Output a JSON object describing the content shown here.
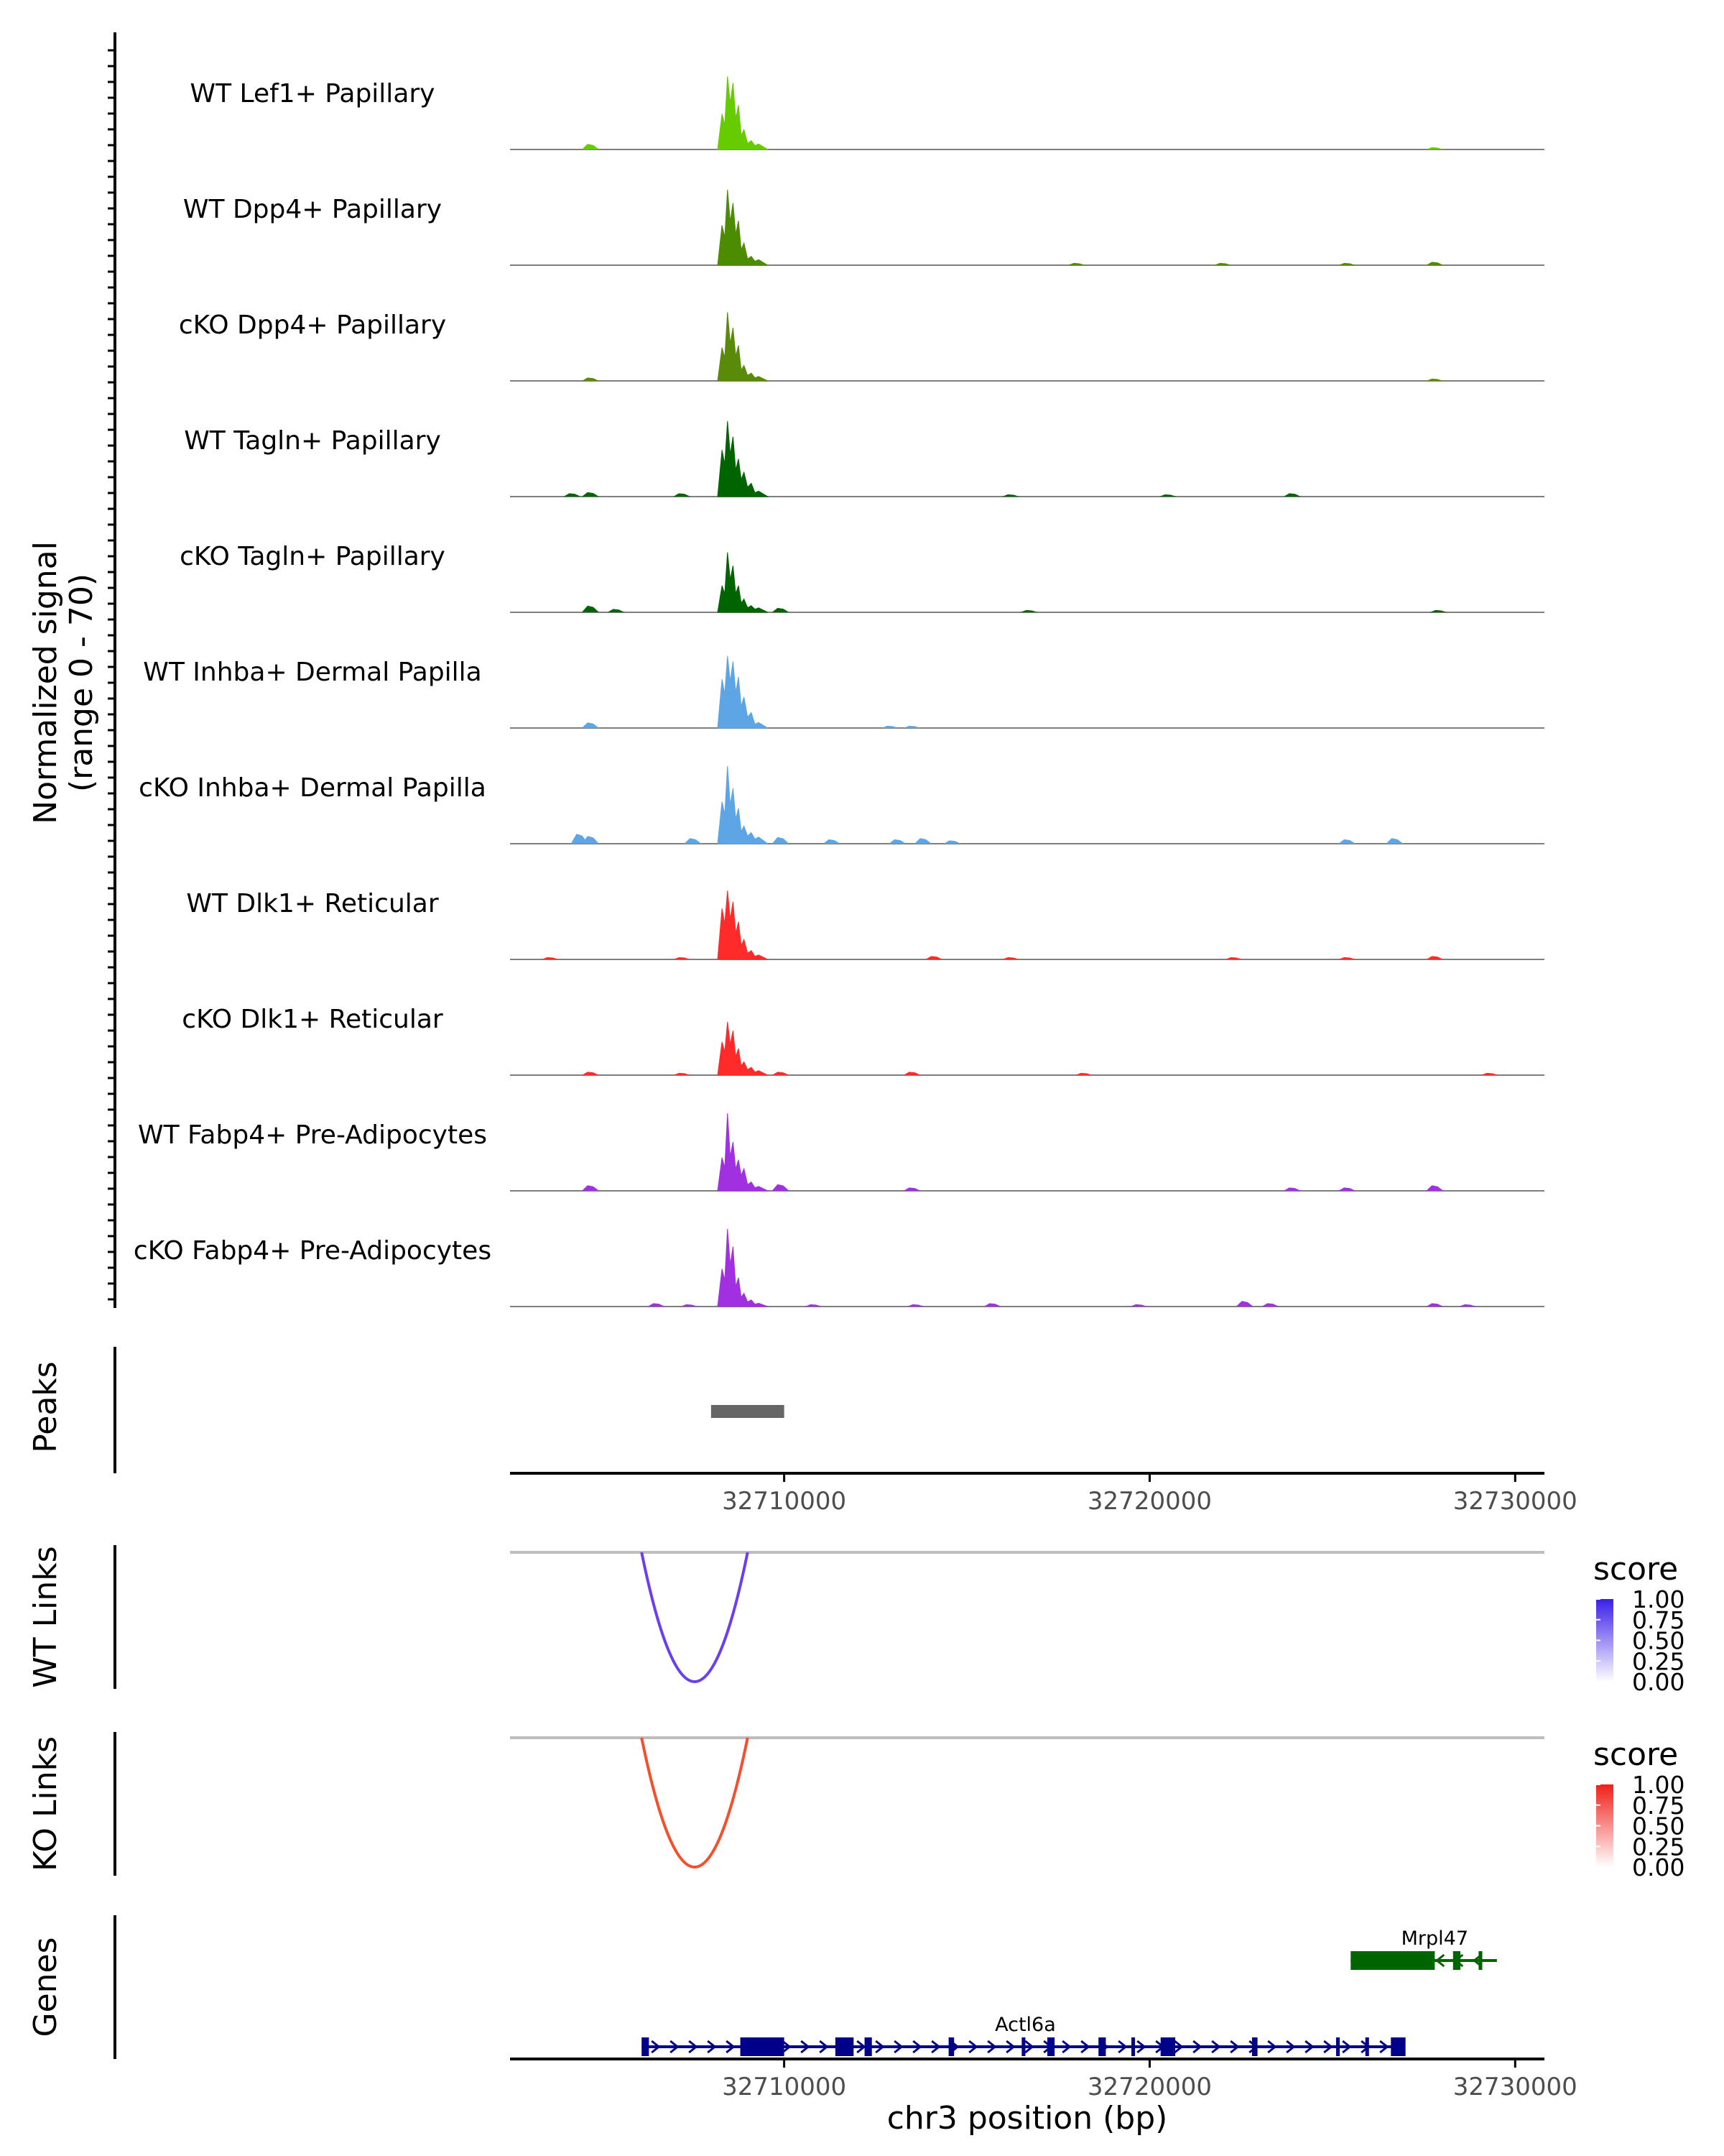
{
  "chart_data": {
    "type": "area",
    "title": "",
    "y_axis_label_line1": "Normalized signal",
    "y_axis_label_line2": "(range 0 - 70)",
    "ylim": [
      0,
      70
    ],
    "xlim": [
      32702500,
      32730800
    ],
    "xlabel": "chr3 position (bp)",
    "x_ticks": [
      32710000,
      32720000,
      32730000
    ],
    "x_tick_labels": [
      "32710000",
      "32720000",
      "32730000"
    ],
    "tracks": [
      {
        "name": "WT Lef1+ Papillary",
        "color": "#66CC00",
        "background": [
          [
            32704700,
            5
          ],
          [
            32727800,
            2
          ]
        ],
        "peak": [
          [
            32708300,
            32
          ],
          [
            32708450,
            66
          ],
          [
            32708600,
            60
          ],
          [
            32708750,
            40
          ],
          [
            32708900,
            18
          ],
          [
            32709100,
            8
          ],
          [
            32709300,
            5
          ]
        ]
      },
      {
        "name": "WT Dpp4+ Papillary",
        "color": "#4C8C00",
        "background": [
          [
            32718000,
            2
          ],
          [
            32722000,
            2
          ],
          [
            32725400,
            2
          ],
          [
            32727800,
            3
          ]
        ],
        "peak": [
          [
            32708300,
            36
          ],
          [
            32708450,
            68
          ],
          [
            32708600,
            56
          ],
          [
            32708750,
            40
          ],
          [
            32708900,
            20
          ],
          [
            32709100,
            8
          ],
          [
            32709300,
            5
          ]
        ]
      },
      {
        "name": "cKO Dpp4+ Papillary",
        "color": "#5A8A0A",
        "background": [
          [
            32704700,
            3
          ],
          [
            32727800,
            2
          ]
        ],
        "peak": [
          [
            32708300,
            30
          ],
          [
            32708450,
            62
          ],
          [
            32708600,
            48
          ],
          [
            32708750,
            32
          ],
          [
            32708900,
            14
          ],
          [
            32709100,
            7
          ],
          [
            32709300,
            4
          ]
        ]
      },
      {
        "name": "WT Tagln+ Papillary",
        "color": "#006400",
        "background": [
          [
            32704200,
            3
          ],
          [
            32704700,
            4
          ],
          [
            32707200,
            3
          ],
          [
            32716200,
            2
          ],
          [
            32720500,
            2
          ],
          [
            32723900,
            3
          ]
        ],
        "peak": [
          [
            32708300,
            42
          ],
          [
            32708450,
            68
          ],
          [
            32708600,
            54
          ],
          [
            32708750,
            34
          ],
          [
            32708900,
            22
          ],
          [
            32709100,
            12
          ],
          [
            32709300,
            5
          ]
        ]
      },
      {
        "name": "cKO Tagln+ Papillary",
        "color": "#006400",
        "background": [
          [
            32704700,
            6
          ],
          [
            32705400,
            3
          ],
          [
            32709900,
            4
          ],
          [
            32716700,
            2
          ],
          [
            32727900,
            2
          ]
        ],
        "peak": [
          [
            32708300,
            24
          ],
          [
            32708450,
            54
          ],
          [
            32708600,
            42
          ],
          [
            32708750,
            24
          ],
          [
            32708900,
            12
          ],
          [
            32709100,
            6
          ],
          [
            32709300,
            4
          ]
        ]
      },
      {
        "name": "WT Inhba+ Dermal Papilla",
        "color": "#5DA5E5",
        "background": [
          [
            32704700,
            5
          ],
          [
            32712900,
            2
          ],
          [
            32713500,
            2
          ]
        ],
        "peak": [
          [
            32708300,
            44
          ],
          [
            32708450,
            65
          ],
          [
            32708600,
            60
          ],
          [
            32708750,
            46
          ],
          [
            32708900,
            28
          ],
          [
            32709100,
            14
          ],
          [
            32709300,
            5
          ]
        ]
      },
      {
        "name": "cKO Inhba+ Dermal Papilla",
        "color": "#5DA5E5",
        "background": [
          [
            32704400,
            9
          ],
          [
            32704700,
            7
          ],
          [
            32707500,
            5
          ],
          [
            32709900,
            6
          ],
          [
            32711300,
            4
          ],
          [
            32713100,
            4
          ],
          [
            32713800,
            5
          ],
          [
            32714600,
            3
          ],
          [
            32725400,
            4
          ],
          [
            32726700,
            5
          ]
        ],
        "peak": [
          [
            32708300,
            38
          ],
          [
            32708450,
            70
          ],
          [
            32708600,
            50
          ],
          [
            32708750,
            32
          ],
          [
            32708900,
            16
          ],
          [
            32709100,
            10
          ],
          [
            32709300,
            6
          ]
        ]
      },
      {
        "name": "WT Dlk1+ Reticular",
        "color": "#FF2A2A",
        "background": [
          [
            32703600,
            2
          ],
          [
            32707200,
            2
          ],
          [
            32714100,
            3
          ],
          [
            32716200,
            2
          ],
          [
            32722300,
            2
          ],
          [
            32725400,
            2
          ],
          [
            32727800,
            3
          ]
        ],
        "peak": [
          [
            32708300,
            46
          ],
          [
            32708450,
            62
          ],
          [
            32708600,
            52
          ],
          [
            32708750,
            34
          ],
          [
            32708900,
            18
          ],
          [
            32709100,
            8
          ],
          [
            32709300,
            4
          ]
        ]
      },
      {
        "name": "cKO Dlk1+ Reticular",
        "color": "#FF2A2A",
        "background": [
          [
            32704700,
            3
          ],
          [
            32707200,
            2
          ],
          [
            32709900,
            3
          ],
          [
            32713500,
            3
          ],
          [
            32718200,
            2
          ],
          [
            32729300,
            2
          ]
        ],
        "peak": [
          [
            32708300,
            30
          ],
          [
            32708450,
            48
          ],
          [
            32708600,
            40
          ],
          [
            32708750,
            24
          ],
          [
            32708900,
            12
          ],
          [
            32709100,
            7
          ],
          [
            32709300,
            4
          ]
        ]
      },
      {
        "name": "WT Fabp4+ Pre-Adipocytes",
        "color": "#A030E0",
        "background": [
          [
            32704700,
            5
          ],
          [
            32709900,
            6
          ],
          [
            32713500,
            3
          ],
          [
            32723900,
            3
          ],
          [
            32725400,
            3
          ],
          [
            32727800,
            5
          ]
        ],
        "peak": [
          [
            32708300,
            30
          ],
          [
            32708450,
            70
          ],
          [
            32708600,
            44
          ],
          [
            32708750,
            28
          ],
          [
            32708900,
            20
          ],
          [
            32709100,
            8
          ],
          [
            32709300,
            4
          ]
        ]
      },
      {
        "name": "cKO Fabp4+ Pre-Adipocytes",
        "color": "#A030E0",
        "background": [
          [
            32706500,
            3
          ],
          [
            32707400,
            2
          ],
          [
            32710800,
            2
          ],
          [
            32713600,
            2
          ],
          [
            32715700,
            3
          ],
          [
            32719700,
            2
          ],
          [
            32722600,
            5
          ],
          [
            32723300,
            3
          ],
          [
            32727800,
            3
          ],
          [
            32728700,
            2
          ]
        ],
        "peak": [
          [
            32708300,
            34
          ],
          [
            32708450,
            70
          ],
          [
            32708600,
            54
          ],
          [
            32708750,
            26
          ],
          [
            32708900,
            12
          ],
          [
            32709100,
            6
          ],
          [
            32709300,
            3
          ]
        ]
      }
    ],
    "peaks": {
      "label": "Peaks",
      "regions": [
        [
          32708000,
          32710000
        ]
      ],
      "color": "#666666"
    },
    "links": [
      {
        "label": "WT Links",
        "start": 32706100,
        "end": 32709000,
        "score": 0.85,
        "legend_title": "score",
        "legend_ticks": [
          "1.00",
          "0.75",
          "0.50",
          "0.25",
          "0.00"
        ],
        "low_color": "#FFFFFF",
        "high_color": "#3A1FE8",
        "arc_color": "#6A3FF0"
      },
      {
        "label": "KO Links",
        "start": 32706100,
        "end": 32709000,
        "score": 0.75,
        "legend_title": "score",
        "legend_ticks": [
          "1.00",
          "0.75",
          "0.50",
          "0.25",
          "0.00"
        ],
        "low_color": "#FFFFFF",
        "high_color": "#F0201A",
        "arc_color": "#F4502E"
      },
      {
        "label": "",
        "start": 0,
        "end": 0,
        "score": 0,
        "legend_title": "",
        "legend_ticks": [],
        "low_color": "#FFFFFF",
        "high_color": "#FFFFFF",
        "arc_color": "#FFFFFF"
      }
    ],
    "genes_label": "Genes",
    "genes": [
      {
        "name": "Mrpl47",
        "strand": "-",
        "start": 32725500,
        "end": 32729500,
        "color": "#006400",
        "exons": [
          [
            32725500,
            32727800
          ],
          [
            32728300,
            32728500
          ],
          [
            32729000,
            32729100
          ]
        ]
      },
      {
        "name": "Actl6a",
        "strand": "+",
        "start": 32706100,
        "end": 32726900,
        "color": "#00008B",
        "exons": [
          [
            32706100,
            32706300
          ],
          [
            32708800,
            32710000
          ],
          [
            32711400,
            32711900
          ],
          [
            32712200,
            32712400
          ],
          [
            32714500,
            32714650
          ],
          [
            32716500,
            32716600
          ],
          [
            32717200,
            32717400
          ],
          [
            32718600,
            32718800
          ],
          [
            32719500,
            32719600
          ],
          [
            32720300,
            32720700
          ],
          [
            32722800,
            32722950
          ],
          [
            32725100,
            32725200
          ],
          [
            32725900,
            32726000
          ],
          [
            32726600,
            32727000
          ]
        ]
      }
    ]
  }
}
